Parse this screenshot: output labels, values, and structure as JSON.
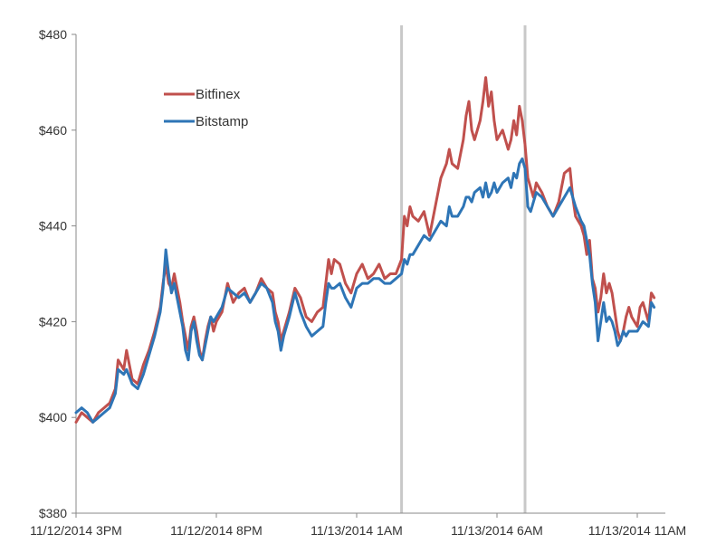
{
  "chart_data": {
    "type": "line",
    "title": "",
    "xlabel": "",
    "ylabel": "",
    "ylim": [
      380,
      480
    ],
    "y_ticks": [
      "$380",
      "$400",
      "$420",
      "$440",
      "$460",
      "$480"
    ],
    "y_tick_values": [
      380,
      400,
      420,
      440,
      460,
      480
    ],
    "x_unit": "hours since 11/12/2014 3PM",
    "xlim": [
      0,
      21
    ],
    "x_ticks": [
      "11/12/2014 3PM",
      "11/12/2014 8PM",
      "11/13/2014 1AM",
      "11/13/2014 6AM",
      "11/13/2014 11AM"
    ],
    "x_tick_values": [
      0,
      5,
      10,
      15,
      20
    ],
    "vertical_markers": [
      11.6,
      16.0
    ],
    "legend_position": "top-left",
    "grid": false,
    "series": [
      {
        "name": "Bitfinex",
        "color": "#c0504d",
        "points": [
          [
            0,
            399
          ],
          [
            0.2,
            401
          ],
          [
            0.4,
            400
          ],
          [
            0.6,
            399
          ],
          [
            0.8,
            401
          ],
          [
            1.0,
            402
          ],
          [
            1.2,
            403
          ],
          [
            1.4,
            406
          ],
          [
            1.5,
            412
          ],
          [
            1.7,
            410
          ],
          [
            1.8,
            414
          ],
          [
            2.0,
            408
          ],
          [
            2.2,
            407
          ],
          [
            2.4,
            411
          ],
          [
            2.6,
            414
          ],
          [
            2.8,
            418
          ],
          [
            3.0,
            423
          ],
          [
            3.1,
            428
          ],
          [
            3.2,
            432
          ],
          [
            3.3,
            428
          ],
          [
            3.4,
            427
          ],
          [
            3.5,
            430
          ],
          [
            3.6,
            427
          ],
          [
            3.7,
            424
          ],
          [
            3.8,
            420
          ],
          [
            3.9,
            417
          ],
          [
            4.0,
            414
          ],
          [
            4.1,
            419
          ],
          [
            4.2,
            421
          ],
          [
            4.3,
            418
          ],
          [
            4.4,
            414
          ],
          [
            4.5,
            412
          ],
          [
            4.6,
            416
          ],
          [
            4.7,
            419
          ],
          [
            4.8,
            421
          ],
          [
            4.9,
            418
          ],
          [
            5.0,
            420
          ],
          [
            5.2,
            422
          ],
          [
            5.4,
            428
          ],
          [
            5.6,
            424
          ],
          [
            5.8,
            426
          ],
          [
            6.0,
            427
          ],
          [
            6.2,
            424
          ],
          [
            6.4,
            426
          ],
          [
            6.6,
            429
          ],
          [
            6.8,
            427
          ],
          [
            7.0,
            426
          ],
          [
            7.1,
            422
          ],
          [
            7.2,
            420
          ],
          [
            7.3,
            416
          ],
          [
            7.4,
            418
          ],
          [
            7.6,
            422
          ],
          [
            7.8,
            427
          ],
          [
            8.0,
            425
          ],
          [
            8.2,
            421
          ],
          [
            8.4,
            420
          ],
          [
            8.6,
            422
          ],
          [
            8.8,
            423
          ],
          [
            8.9,
            428
          ],
          [
            9.0,
            433
          ],
          [
            9.1,
            430
          ],
          [
            9.2,
            433
          ],
          [
            9.4,
            432
          ],
          [
            9.6,
            428
          ],
          [
            9.8,
            426
          ],
          [
            10.0,
            430
          ],
          [
            10.2,
            432
          ],
          [
            10.4,
            429
          ],
          [
            10.6,
            430
          ],
          [
            10.8,
            432
          ],
          [
            11.0,
            429
          ],
          [
            11.2,
            430
          ],
          [
            11.4,
            430
          ],
          [
            11.6,
            433
          ],
          [
            11.7,
            442
          ],
          [
            11.8,
            440
          ],
          [
            11.9,
            444
          ],
          [
            12.0,
            442
          ],
          [
            12.2,
            441
          ],
          [
            12.4,
            443
          ],
          [
            12.6,
            438
          ],
          [
            12.8,
            444
          ],
          [
            13.0,
            450
          ],
          [
            13.2,
            453
          ],
          [
            13.3,
            456
          ],
          [
            13.4,
            453
          ],
          [
            13.6,
            452
          ],
          [
            13.8,
            458
          ],
          [
            13.9,
            463
          ],
          [
            14.0,
            466
          ],
          [
            14.1,
            460
          ],
          [
            14.2,
            458
          ],
          [
            14.4,
            462
          ],
          [
            14.5,
            466
          ],
          [
            14.6,
            471
          ],
          [
            14.7,
            465
          ],
          [
            14.8,
            468
          ],
          [
            14.9,
            462
          ],
          [
            15.0,
            458
          ],
          [
            15.2,
            460
          ],
          [
            15.4,
            456
          ],
          [
            15.5,
            458
          ],
          [
            15.6,
            462
          ],
          [
            15.7,
            459
          ],
          [
            15.8,
            465
          ],
          [
            15.9,
            462
          ],
          [
            16.0,
            457
          ],
          [
            16.1,
            450
          ],
          [
            16.2,
            448
          ],
          [
            16.3,
            446
          ],
          [
            16.4,
            449
          ],
          [
            16.6,
            447
          ],
          [
            16.8,
            444
          ],
          [
            17.0,
            442
          ],
          [
            17.2,
            445
          ],
          [
            17.4,
            451
          ],
          [
            17.6,
            452
          ],
          [
            17.7,
            446
          ],
          [
            17.8,
            442
          ],
          [
            18.0,
            440
          ],
          [
            18.1,
            438
          ],
          [
            18.2,
            434
          ],
          [
            18.3,
            437
          ],
          [
            18.4,
            429
          ],
          [
            18.5,
            427
          ],
          [
            18.6,
            422
          ],
          [
            18.7,
            425
          ],
          [
            18.8,
            430
          ],
          [
            18.9,
            426
          ],
          [
            19.0,
            428
          ],
          [
            19.1,
            426
          ],
          [
            19.2,
            422
          ],
          [
            19.3,
            418
          ],
          [
            19.4,
            416
          ],
          [
            19.5,
            418
          ],
          [
            19.6,
            421
          ],
          [
            19.7,
            423
          ],
          [
            19.8,
            421
          ],
          [
            20.0,
            419
          ],
          [
            20.1,
            423
          ],
          [
            20.2,
            424
          ],
          [
            20.4,
            420
          ],
          [
            20.5,
            426
          ],
          [
            20.6,
            425
          ]
        ]
      },
      {
        "name": "Bitstamp",
        "color": "#2e75b6",
        "points": [
          [
            0,
            401
          ],
          [
            0.2,
            402
          ],
          [
            0.4,
            401
          ],
          [
            0.6,
            399
          ],
          [
            0.8,
            400
          ],
          [
            1.0,
            401
          ],
          [
            1.2,
            402
          ],
          [
            1.4,
            405
          ],
          [
            1.5,
            410
          ],
          [
            1.7,
            409
          ],
          [
            1.8,
            410
          ],
          [
            2.0,
            407
          ],
          [
            2.2,
            406
          ],
          [
            2.4,
            409
          ],
          [
            2.6,
            413
          ],
          [
            2.8,
            417
          ],
          [
            3.0,
            422
          ],
          [
            3.1,
            427
          ],
          [
            3.2,
            435
          ],
          [
            3.3,
            430
          ],
          [
            3.4,
            426
          ],
          [
            3.5,
            428
          ],
          [
            3.6,
            425
          ],
          [
            3.7,
            422
          ],
          [
            3.8,
            419
          ],
          [
            3.9,
            414
          ],
          [
            4.0,
            412
          ],
          [
            4.1,
            418
          ],
          [
            4.2,
            420
          ],
          [
            4.3,
            416
          ],
          [
            4.4,
            413
          ],
          [
            4.5,
            412
          ],
          [
            4.6,
            415
          ],
          [
            4.7,
            418
          ],
          [
            4.8,
            421
          ],
          [
            4.9,
            420
          ],
          [
            5.0,
            421
          ],
          [
            5.2,
            423
          ],
          [
            5.4,
            427
          ],
          [
            5.6,
            426
          ],
          [
            5.8,
            425
          ],
          [
            6.0,
            426
          ],
          [
            6.2,
            424
          ],
          [
            6.4,
            426
          ],
          [
            6.6,
            428
          ],
          [
            6.8,
            427
          ],
          [
            7.0,
            424
          ],
          [
            7.1,
            420
          ],
          [
            7.2,
            418
          ],
          [
            7.3,
            414
          ],
          [
            7.4,
            417
          ],
          [
            7.6,
            421
          ],
          [
            7.8,
            426
          ],
          [
            8.0,
            422
          ],
          [
            8.2,
            419
          ],
          [
            8.4,
            417
          ],
          [
            8.6,
            418
          ],
          [
            8.8,
            419
          ],
          [
            8.9,
            424
          ],
          [
            9.0,
            428
          ],
          [
            9.1,
            427
          ],
          [
            9.2,
            427
          ],
          [
            9.4,
            428
          ],
          [
            9.6,
            425
          ],
          [
            9.8,
            423
          ],
          [
            10.0,
            427
          ],
          [
            10.2,
            428
          ],
          [
            10.4,
            428
          ],
          [
            10.6,
            429
          ],
          [
            10.8,
            429
          ],
          [
            11.0,
            428
          ],
          [
            11.2,
            428
          ],
          [
            11.4,
            429
          ],
          [
            11.6,
            430
          ],
          [
            11.7,
            433
          ],
          [
            11.8,
            432
          ],
          [
            11.9,
            434
          ],
          [
            12.0,
            434
          ],
          [
            12.2,
            436
          ],
          [
            12.4,
            438
          ],
          [
            12.6,
            437
          ],
          [
            12.8,
            439
          ],
          [
            13.0,
            441
          ],
          [
            13.2,
            440
          ],
          [
            13.3,
            444
          ],
          [
            13.4,
            442
          ],
          [
            13.6,
            442
          ],
          [
            13.8,
            444
          ],
          [
            13.9,
            446
          ],
          [
            14.0,
            446
          ],
          [
            14.1,
            445
          ],
          [
            14.2,
            447
          ],
          [
            14.4,
            448
          ],
          [
            14.5,
            446
          ],
          [
            14.6,
            449
          ],
          [
            14.7,
            446
          ],
          [
            14.8,
            447
          ],
          [
            14.9,
            449
          ],
          [
            15.0,
            447
          ],
          [
            15.2,
            449
          ],
          [
            15.4,
            450
          ],
          [
            15.5,
            448
          ],
          [
            15.6,
            451
          ],
          [
            15.7,
            450
          ],
          [
            15.8,
            453
          ],
          [
            15.9,
            454
          ],
          [
            16.0,
            452
          ],
          [
            16.1,
            444
          ],
          [
            16.2,
            443
          ],
          [
            16.3,
            445
          ],
          [
            16.4,
            447
          ],
          [
            16.6,
            446
          ],
          [
            16.8,
            444
          ],
          [
            17.0,
            442
          ],
          [
            17.2,
            444
          ],
          [
            17.4,
            446
          ],
          [
            17.6,
            448
          ],
          [
            17.7,
            446
          ],
          [
            17.8,
            444
          ],
          [
            18.0,
            441
          ],
          [
            18.1,
            440
          ],
          [
            18.2,
            437
          ],
          [
            18.3,
            434
          ],
          [
            18.4,
            428
          ],
          [
            18.5,
            424
          ],
          [
            18.6,
            416
          ],
          [
            18.7,
            420
          ],
          [
            18.8,
            424
          ],
          [
            18.9,
            420
          ],
          [
            19.0,
            421
          ],
          [
            19.1,
            420
          ],
          [
            19.2,
            418
          ],
          [
            19.3,
            415
          ],
          [
            19.4,
            416
          ],
          [
            19.5,
            418
          ],
          [
            19.6,
            417
          ],
          [
            19.7,
            418
          ],
          [
            19.8,
            418
          ],
          [
            20.0,
            418
          ],
          [
            20.1,
            419
          ],
          [
            20.2,
            420
          ],
          [
            20.4,
            419
          ],
          [
            20.5,
            424
          ],
          [
            20.6,
            423
          ]
        ]
      }
    ]
  }
}
